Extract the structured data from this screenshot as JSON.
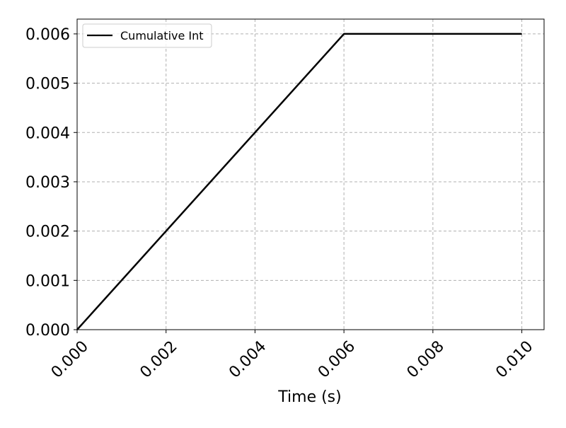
{
  "chart_data": {
    "type": "line",
    "xlabel": "Time (s)",
    "ylabel": "",
    "title": "",
    "xlim": [
      0.0,
      0.0105
    ],
    "ylim": [
      0.0,
      0.0063
    ],
    "x_ticks": [
      0.0,
      0.002,
      0.004,
      0.006,
      0.008,
      0.01
    ],
    "x_tick_labels": [
      "0.000",
      "0.002",
      "0.004",
      "0.006",
      "0.008",
      "0.010"
    ],
    "y_ticks": [
      0.0,
      0.001,
      0.002,
      0.003,
      0.004,
      0.005,
      0.006
    ],
    "y_tick_labels": [
      "0.000",
      "0.001",
      "0.002",
      "0.003",
      "0.004",
      "0.005",
      "0.006"
    ],
    "grid": true,
    "legend_position": "top-left",
    "series": [
      {
        "name": "Cumulative Int",
        "color": "#000000",
        "x": [
          0.0,
          0.006,
          0.01
        ],
        "y": [
          0.0,
          0.006,
          0.006
        ]
      }
    ]
  }
}
